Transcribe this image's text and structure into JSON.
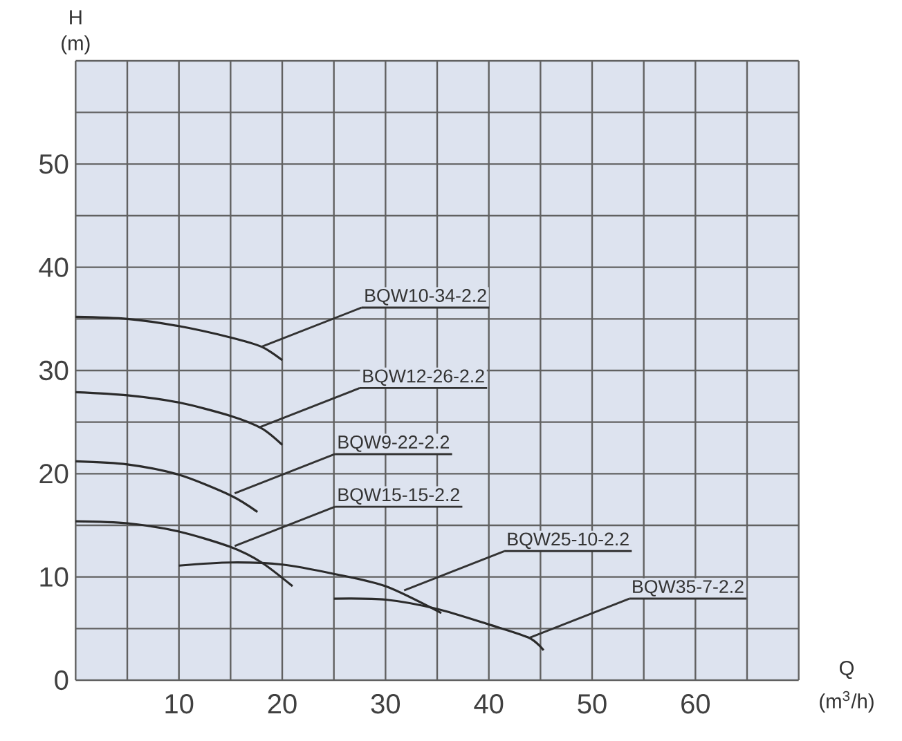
{
  "chart_data": {
    "type": "line",
    "xlabel": "Q (m$^{3}$/h)",
    "ylabel": "H (m)",
    "xlim": [
      0,
      70
    ],
    "ylim": [
      0,
      60
    ],
    "xticks": [
      {
        "value": 0,
        "label": null
      },
      {
        "value": 5,
        "label": null
      },
      10,
      {
        "value": 15,
        "label": null
      },
      20,
      {
        "value": 25,
        "label": null
      },
      30,
      {
        "value": 35,
        "label": null
      },
      40,
      {
        "value": 45,
        "label": null
      },
      50,
      {
        "value": 55,
        "label": null
      },
      60,
      {
        "value": 65,
        "label": null
      },
      {
        "value": 70,
        "label": null
      }
    ],
    "yticks": [
      0,
      {
        "value": 5,
        "label": null
      },
      10,
      {
        "value": 15,
        "label": null
      },
      20,
      {
        "value": 25,
        "label": null
      },
      30,
      {
        "value": 35,
        "label": null
      },
      40,
      {
        "value": 45,
        "label": null
      },
      50,
      {
        "value": 55,
        "label": null
      },
      {
        "value": 60,
        "label": null
      }
    ],
    "grid": true,
    "marker": "none",
    "line_style": "solid",
    "series": [
      {
        "color": "#2b2b2b",
        "x": [
          0,
          5,
          10,
          15,
          18,
          20
        ],
        "values": [
          35.2,
          35,
          34.3,
          33.2,
          32.3,
          31
        ]
      },
      {
        "color": "#2b2b2b",
        "x": [
          0,
          5,
          10,
          15,
          18,
          20
        ],
        "values": [
          27.9,
          27.6,
          26.9,
          25.6,
          24.4,
          22.8
        ]
      },
      {
        "color": "#2b2b2b",
        "x": [
          0,
          5,
          10,
          15,
          17.6
        ],
        "values": [
          21.2,
          20.9,
          19.9,
          17.9,
          16.3
        ]
      },
      {
        "color": "#2b2b2b",
        "x": [
          0,
          5,
          10,
          15,
          18,
          21
        ],
        "values": [
          15.4,
          15.2,
          14.4,
          12.9,
          11.4,
          9.1
        ]
      },
      {
        "color": "#2b2b2b",
        "x": [
          10,
          15,
          20,
          25,
          30,
          35.4
        ],
        "values": [
          11.1,
          11.4,
          11.2,
          10.3,
          9.1,
          6.5
        ]
      },
      {
        "color": "#2b2b2b",
        "x": [
          25,
          30,
          35,
          40,
          43.9,
          45.3
        ],
        "values": [
          7.9,
          7.8,
          6.9,
          5.4,
          4.1,
          2.9
        ]
      }
    ],
    "annotations": [
      {
        "text": "BQW10-34-2.2",
        "x": 18,
        "y": 32.3
      },
      {
        "text": "BQW12-26-2.2",
        "x": 17.8,
        "y": 24.5
      },
      {
        "text": "BQW9-22-2.2",
        "x": 15.4,
        "y": 18.1
      },
      {
        "text": "BQW15-15-2.2",
        "x": 15.4,
        "y": 13
      },
      {
        "text": "BQW25-10-2.2",
        "x": 31.8,
        "y": 8.7
      },
      {
        "text": "BQW35-7-2.2",
        "x": 43.9,
        "y": 4.1
      }
    ]
  }
}
